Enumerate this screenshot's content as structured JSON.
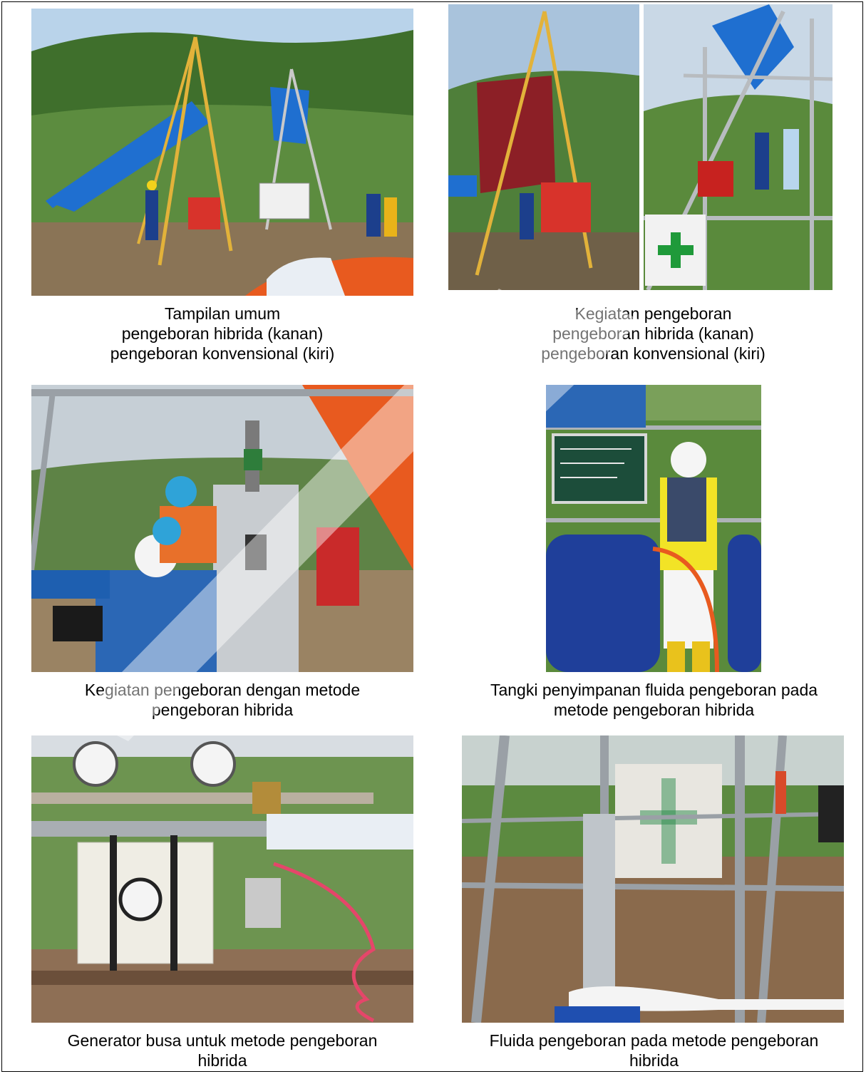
{
  "figures": [
    {
      "photo": "drilling-rigs-hillside-photo",
      "caption_lines": [
        "Tampilan umum",
        "pengeboran hibrida (kanan)",
        "pengeboran konvensional (kiri)"
      ]
    },
    {
      "photo": "drilling-activity-photo",
      "caption_lines": [
        "Kegiatan pengeboran",
        "pengeboran hibrida (kanan)",
        "pengeboran konvensional (kiri)"
      ]
    },
    {
      "photo": "workers-at-hybrid-rig-photo",
      "caption_lines": [
        "Kegiatan pengeboran dengan metode",
        "pengeboran hibrida"
      ]
    },
    {
      "photo": "fluid-storage-tank-photo",
      "caption_lines": [
        "Tangki penyimpanan fluida pengeboran pada",
        "metode pengeboran hibrida"
      ]
    },
    {
      "photo": "foam-generator-photo",
      "caption_lines": [
        "Generator busa untuk metode pengeboran",
        "hibrida"
      ]
    },
    {
      "photo": "drilling-fluid-ground-photo",
      "caption_lines": [
        "Fluida pengeboran pada metode pengeboran",
        "hibrida"
      ]
    }
  ],
  "colors": {
    "sky": "#b9d3ea",
    "vegetation": "#4f7f3a",
    "tarp_blue": "#1f6fd0",
    "tarp_orange": "#e85a1f",
    "soil": "#8a7456",
    "watermark": "#e6e6e6"
  }
}
